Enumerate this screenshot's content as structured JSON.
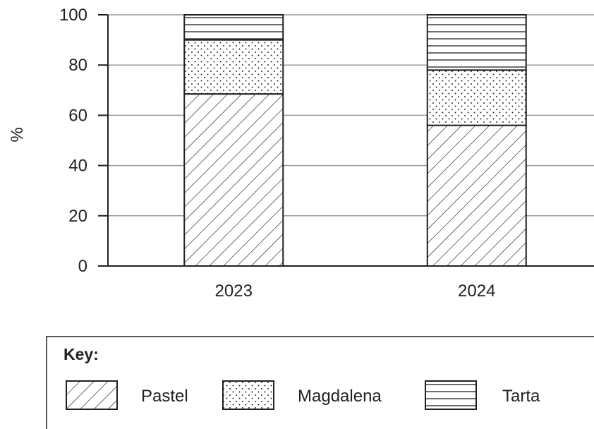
{
  "chart_data": {
    "type": "bar",
    "stacked": true,
    "categories": [
      "2023",
      "2024"
    ],
    "series": [
      {
        "name": "Pastel",
        "values": [
          68.5,
          56
        ],
        "pattern": "diagonal"
      },
      {
        "name": "Magdalena",
        "values": [
          21.5,
          22
        ],
        "pattern": "dots"
      },
      {
        "name": "Tarta",
        "values": [
          10,
          22
        ],
        "pattern": "horizontal"
      }
    ],
    "ylabel": "%",
    "xlabel": "",
    "title": "",
    "ylim": [
      0,
      100
    ],
    "yticks": [
      0,
      20,
      40,
      60,
      80,
      100
    ],
    "grid": true,
    "legend": {
      "title": "Key:",
      "placement": "bottom"
    },
    "colors": {
      "ink": "#231f20",
      "grid": "#9a9a9a",
      "background": "#ffffff"
    }
  }
}
